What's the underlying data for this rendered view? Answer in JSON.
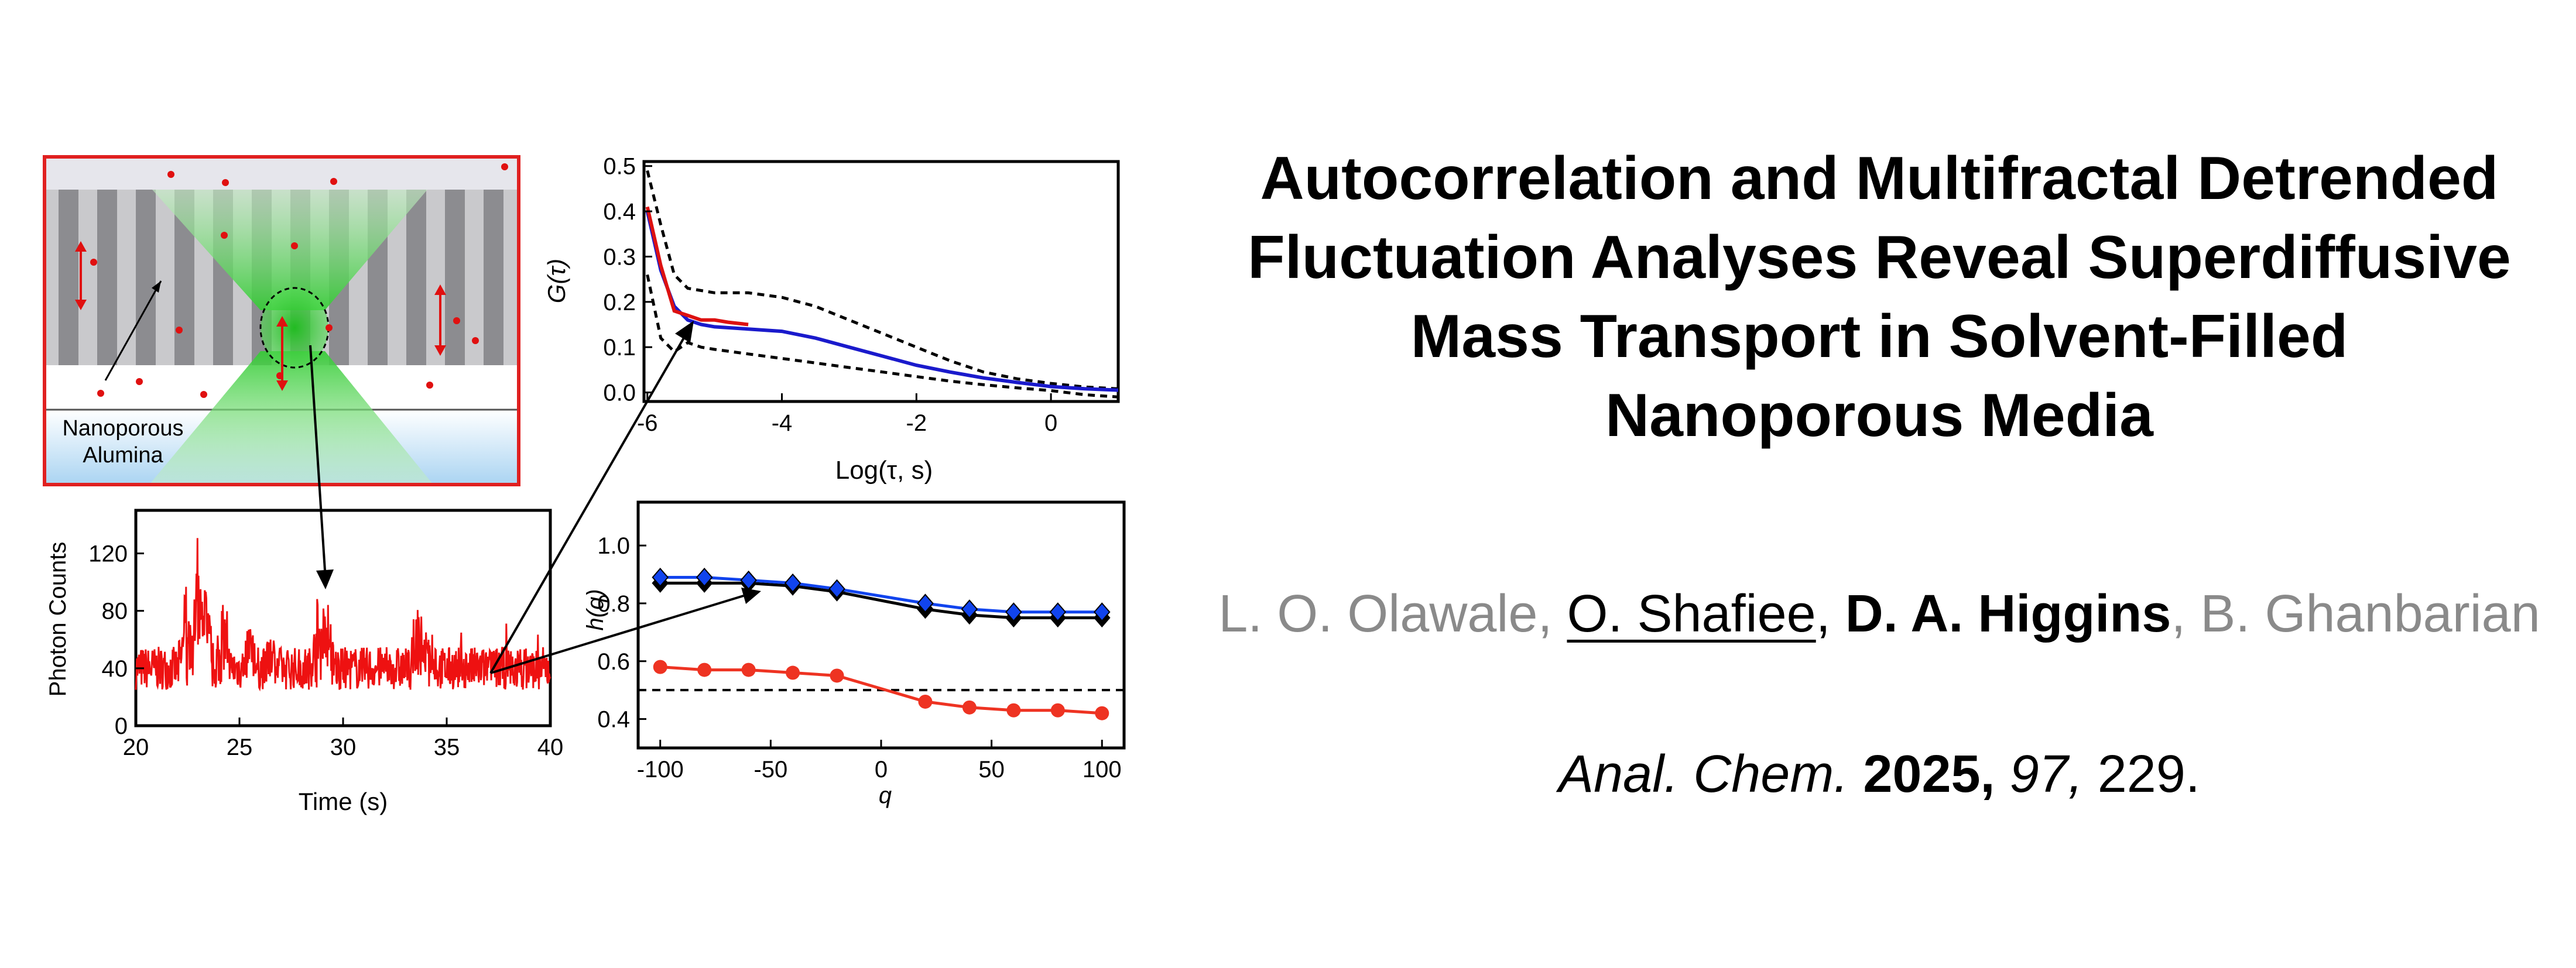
{
  "title_lines": [
    "Autocorrelation and Multifractal Detrended",
    "Fluctuation Analyses Reveal Superdiffusive",
    "Mass Transport in Solvent-Filled",
    "Nanoporous Media"
  ],
  "authors": {
    "a1": "L. O. Olawale",
    "sep1": ", ",
    "a2": "O. Shafiee",
    "sep2": ", ",
    "a3": "D. A. Higgins",
    "sep3": ", ",
    "a4": "B. Ghanbarian"
  },
  "citation": {
    "journal": "Anal. Chem.",
    "year": "2025,",
    "volume": "97,",
    "pages": "229."
  },
  "schematic": {
    "label_line1": "Nanoporous",
    "label_line2": "Alumina",
    "border_color": "#e02020",
    "beam_color": "#33cc33",
    "molecule_color": "#e01010"
  },
  "chart_data": [
    {
      "type": "line",
      "ylabel": "G(τ)",
      "xlabel": "Log(τ, s)",
      "xlim": [
        -6,
        1
      ],
      "ylim": [
        0,
        0.5
      ],
      "xticks": [
        "-6",
        "-4",
        "-2",
        "0"
      ],
      "yticks": [
        "0.0",
        "0.1",
        "0.2",
        "0.3",
        "0.4",
        "0.5"
      ],
      "series": [
        {
          "color": "#1a1acc",
          "x": [
            -6.0,
            -5.8,
            -5.6,
            -5.4,
            -5.2,
            -5.0,
            -4.5,
            -4.0,
            -3.5,
            -3.0,
            -2.5,
            -2.0,
            -1.5,
            -1.0,
            -0.5,
            0.0,
            0.5,
            1.0
          ],
          "y": [
            0.4,
            0.27,
            0.19,
            0.16,
            0.15,
            0.145,
            0.14,
            0.135,
            0.12,
            0.1,
            0.08,
            0.06,
            0.045,
            0.032,
            0.022,
            0.013,
            0.008,
            0.005
          ]
        },
        {
          "color": "#dd1111",
          "x": [
            -6.0,
            -5.8,
            -5.6,
            -5.4,
            -5.2,
            -5.0,
            -4.8,
            -4.5
          ],
          "y": [
            0.41,
            0.28,
            0.18,
            0.17,
            0.16,
            0.16,
            0.155,
            0.15
          ]
        },
        {
          "color": "#000000",
          "dashed": true,
          "x": [
            -6.0,
            -5.8,
            -5.6,
            -5.4,
            -5.0,
            -4.5,
            -4.0,
            -3.5,
            -3.0,
            -2.5,
            -2.0,
            -1.5,
            -1.0,
            -0.5,
            0.0,
            0.5,
            1.0
          ],
          "y": [
            0.49,
            0.37,
            0.26,
            0.23,
            0.22,
            0.22,
            0.21,
            0.19,
            0.16,
            0.13,
            0.1,
            0.07,
            0.045,
            0.03,
            0.02,
            0.012,
            0.008
          ]
        },
        {
          "color": "#000000",
          "dashed": true,
          "x": [
            -6.0,
            -5.8,
            -5.6,
            -5.4,
            -5.2,
            -5.0,
            -4.5,
            -4.0,
            -3.5,
            -3.0,
            -2.5,
            -2.0,
            -1.5,
            -1.0,
            -0.5,
            0.0,
            0.5,
            1.0
          ],
          "y": [
            0.26,
            0.12,
            0.09,
            0.11,
            0.1,
            0.095,
            0.085,
            0.075,
            0.065,
            0.055,
            0.045,
            0.035,
            0.025,
            0.017,
            0.01,
            0.004,
            -0.005,
            -0.01
          ]
        }
      ]
    },
    {
      "type": "line",
      "ylabel": "Photon Counts",
      "xlabel": "Time (s)",
      "xlim": [
        20,
        40
      ],
      "ylim": [
        0,
        150
      ],
      "xticks": [
        "20",
        "25",
        "30",
        "35",
        "40"
      ],
      "yticks": [
        "0",
        "40",
        "80",
        "120"
      ],
      "series": [
        {
          "color": "#ee1111",
          "noisy_trace": true,
          "baseline": 40
        }
      ]
    },
    {
      "type": "line",
      "ylabel": "h(q)",
      "xlabel": "q",
      "xlim": [
        -100,
        100
      ],
      "ylim": [
        0.3,
        1.15
      ],
      "xticks": [
        "-100",
        "-50",
        "0",
        "50",
        "100"
      ],
      "yticks": [
        "0.4",
        "0.6",
        "0.8",
        "1.0"
      ],
      "reference_line": 0.5,
      "series": [
        {
          "color": "#1144ee",
          "marker": "diamond",
          "x": [
            -100,
            -80,
            -60,
            -40,
            -20,
            20,
            40,
            60,
            80,
            100
          ],
          "y": [
            0.89,
            0.89,
            0.88,
            0.87,
            0.85,
            0.8,
            0.78,
            0.77,
            0.77,
            0.77
          ]
        },
        {
          "color": "#000000",
          "marker": "diamond",
          "x": [
            -100,
            -80,
            -60,
            -40,
            -20,
            20,
            40,
            60,
            80,
            100
          ],
          "y": [
            0.87,
            0.87,
            0.87,
            0.86,
            0.84,
            0.78,
            0.76,
            0.75,
            0.75,
            0.75
          ]
        },
        {
          "color": "#ee3322",
          "marker": "circle",
          "x": [
            -100,
            -80,
            -60,
            -40,
            -20,
            20,
            40,
            60,
            80,
            100
          ],
          "y": [
            0.58,
            0.57,
            0.57,
            0.56,
            0.55,
            0.46,
            0.44,
            0.43,
            0.43,
            0.42
          ]
        }
      ]
    }
  ]
}
